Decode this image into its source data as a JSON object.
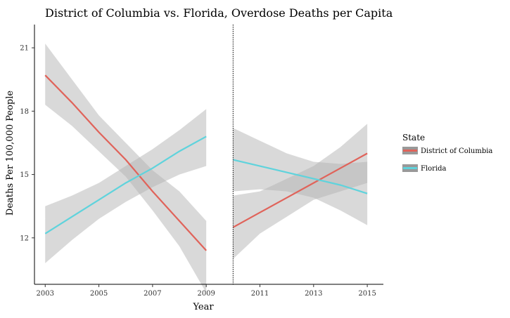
{
  "chart_data": {
    "type": "line",
    "title": "District of Columbia vs. Florida, Overdose Deaths per Capita",
    "xlabel": "Year",
    "ylabel": "Deaths Per 100,000 People",
    "xlim": [
      2002.6,
      2015.6
    ],
    "ylim": [
      9.8,
      22.1
    ],
    "x_ticks": [
      2003,
      2005,
      2007,
      2009,
      2011,
      2013,
      2015
    ],
    "y_ticks": [
      12,
      15,
      18,
      21
    ],
    "grid": false,
    "vline": {
      "x": 2010,
      "style": "dotted"
    },
    "legend": {
      "title": "State",
      "placement": "right",
      "entries": [
        {
          "name": "District of Columbia",
          "color": "#e0635a"
        },
        {
          "name": "Florida",
          "color": "#5fd3dc"
        }
      ]
    },
    "band_color": "#b3b3b3",
    "series": [
      {
        "name": "District of Columbia",
        "color": "#e0635a",
        "segments": [
          {
            "x": [
              2003,
              2004,
              2005,
              2006,
              2007,
              2008,
              2009
            ],
            "y": [
              19.7,
              18.4,
              17.0,
              15.7,
              14.2,
              12.8,
              11.4
            ],
            "lower": [
              18.3,
              17.3,
              16.1,
              14.9,
              13.3,
              11.6,
              9.4
            ],
            "upper": [
              21.2,
              19.5,
              17.8,
              16.5,
              15.2,
              14.2,
              12.8
            ]
          },
          {
            "x": [
              2010,
              2011,
              2012,
              2013,
              2014,
              2015
            ],
            "y": [
              12.5,
              13.2,
              13.9,
              14.6,
              15.3,
              16.0
            ],
            "lower": [
              11.0,
              12.2,
              13.0,
              13.8,
              14.2,
              14.6
            ],
            "upper": [
              14.0,
              14.2,
              14.8,
              15.4,
              16.3,
              17.4
            ]
          }
        ]
      },
      {
        "name": "Florida",
        "color": "#5fd3dc",
        "segments": [
          {
            "x": [
              2003,
              2004,
              2005,
              2006,
              2007,
              2008,
              2009
            ],
            "y": [
              12.2,
              13.0,
              13.8,
              14.6,
              15.3,
              16.1,
              16.8
            ],
            "lower": [
              10.8,
              11.9,
              12.9,
              13.7,
              14.4,
              15.0,
              15.4
            ],
            "upper": [
              13.5,
              14.0,
              14.6,
              15.4,
              16.2,
              17.1,
              18.1
            ]
          },
          {
            "x": [
              2010,
              2011,
              2012,
              2013,
              2014,
              2015
            ],
            "y": [
              15.7,
              15.4,
              15.1,
              14.8,
              14.5,
              14.1
            ],
            "lower": [
              14.2,
              14.3,
              14.2,
              13.9,
              13.3,
              12.6
            ],
            "upper": [
              17.2,
              16.6,
              16.0,
              15.6,
              15.5,
              15.6
            ]
          }
        ]
      }
    ]
  }
}
